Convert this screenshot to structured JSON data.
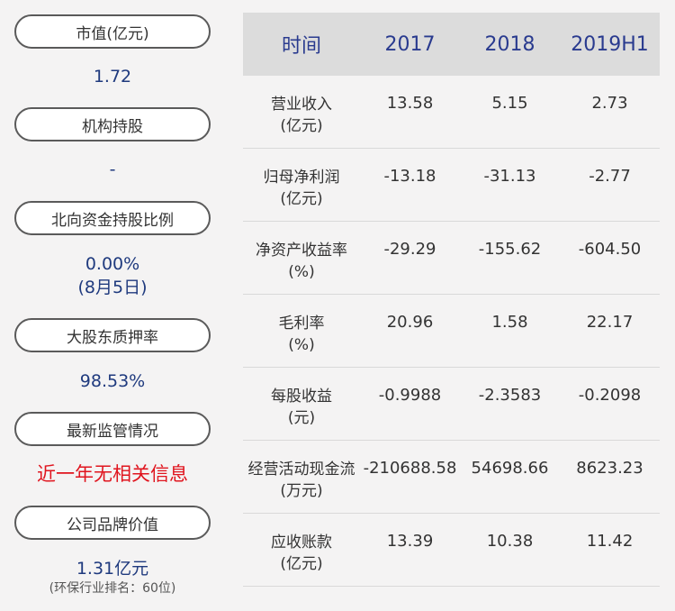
{
  "left_panel": {
    "items": [
      {
        "label": "市值(亿元)",
        "value": "1.72"
      },
      {
        "label": "机构持股",
        "value": "-"
      },
      {
        "label": "北向资金持股比例",
        "value": "0.00%",
        "value2": "(8月5日)"
      },
      {
        "label": "大股东质押率",
        "value": "98.53%"
      },
      {
        "label": "最新监管情况",
        "value": "近一年无相关信息"
      },
      {
        "label": "公司品牌价值",
        "value": "1.31亿元",
        "note": "(环保行业排名：60位)"
      }
    ]
  },
  "table": {
    "headers": [
      "时间",
      "2017",
      "2018",
      "2019H1"
    ],
    "rows": [
      {
        "label1": "营业收入",
        "label2": "(亿元)",
        "values": [
          "13.58",
          "5.15",
          "2.73"
        ]
      },
      {
        "label1": "归母净利润",
        "label2": "(亿元)",
        "values": [
          "-13.18",
          "-31.13",
          "-2.77"
        ]
      },
      {
        "label1": "净资产收益率",
        "label2": "(%)",
        "values": [
          "-29.29",
          "-155.62",
          "-604.50"
        ]
      },
      {
        "label1": "毛利率",
        "label2": "(%)",
        "values": [
          "20.96",
          "1.58",
          "22.17"
        ]
      },
      {
        "label1": "每股收益",
        "label2": "(元)",
        "values": [
          "-0.9988",
          "-2.3583",
          "-0.2098"
        ]
      },
      {
        "label1": "经营活动现金流",
        "label2": "(万元)",
        "values": [
          "-210688.58",
          "54698.66",
          "8623.23"
        ]
      },
      {
        "label1": "应收账款",
        "label2": "(亿元)",
        "values": [
          "13.39",
          "10.38",
          "11.42"
        ]
      }
    ]
  },
  "colors": {
    "accent_blue": "#1f3a7e",
    "header_text": "#2a3b8f",
    "alert_red": "#e0141e",
    "header_bg": "#dcdcdc",
    "page_bg": "#f4f3f3"
  }
}
